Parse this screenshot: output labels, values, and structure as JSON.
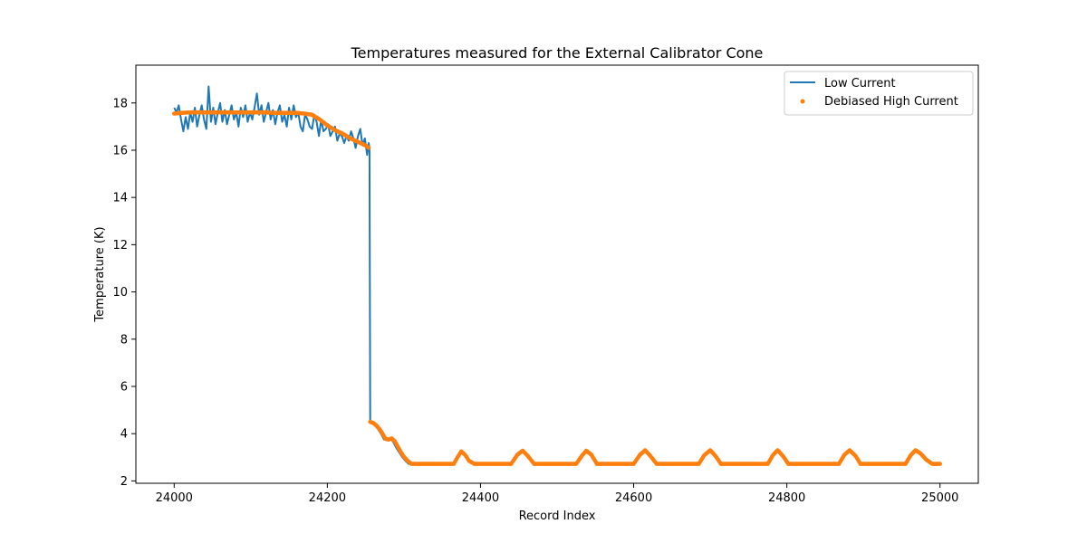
{
  "chart_data": {
    "type": "line",
    "title": "Temperatures measured for the External Calibrator Cone",
    "xlabel": "Record Index",
    "ylabel": "Temperature (K)",
    "xlim": [
      23950,
      25050
    ],
    "ylim": [
      1.9,
      19.6
    ],
    "xticks": [
      24000,
      24200,
      24400,
      24600,
      24800,
      25000
    ],
    "yticks": [
      2,
      4,
      6,
      8,
      10,
      12,
      14,
      16,
      18
    ],
    "grid": false,
    "legend_position": "top-right",
    "series": [
      {
        "name": "Low Current",
        "kind": "line",
        "color": "#1f77b4",
        "x": [
          24000,
          24003,
          24006,
          24009,
          24012,
          24015,
          24018,
          24021,
          24024,
          24027,
          24030,
          24033,
          24036,
          24039,
          24042,
          24045,
          24048,
          24051,
          24054,
          24057,
          24060,
          24063,
          24066,
          24069,
          24072,
          24075,
          24078,
          24081,
          24084,
          24087,
          24090,
          24093,
          24096,
          24099,
          24102,
          24105,
          24108,
          24111,
          24114,
          24117,
          24120,
          24123,
          24126,
          24129,
          24132,
          24135,
          24138,
          24141,
          24144,
          24147,
          24150,
          24153,
          24156,
          24159,
          24162,
          24165,
          24168,
          24171,
          24174,
          24177,
          24180,
          24183,
          24186,
          24189,
          24192,
          24195,
          24198,
          24201,
          24204,
          24207,
          24210,
          24213,
          24216,
          24219,
          24222,
          24225,
          24228,
          24231,
          24234,
          24237,
          24240,
          24243,
          24246,
          24249,
          24252,
          24254,
          24255,
          24256,
          24258,
          24262,
          24266,
          24270,
          24274,
          24278,
          24282,
          24286,
          24290,
          24294,
          24298,
          24302,
          24306,
          24310,
          24316,
          24350,
          24365,
          24370,
          24375,
          24380,
          24385,
          24392,
          24440,
          24448,
          24455,
          24462,
          24470,
          24525,
          24532,
          24538,
          24545,
          24552,
          24600,
          24608,
          24615,
          24622,
          24630,
          24685,
          24692,
          24700,
          24707,
          24714,
          24775,
          24782,
          24788,
          24795,
          24802,
          24868,
          24875,
          24882,
          24890,
          24896,
          24955,
          24962,
          24968,
          24975,
          24982,
          24990,
          25000
        ],
        "y": [
          17.8,
          17.6,
          17.9,
          17.3,
          16.8,
          17.4,
          16.9,
          17.6,
          17.2,
          17.8,
          17.0,
          17.5,
          17.9,
          17.3,
          16.9,
          18.7,
          17.2,
          17.8,
          17.1,
          17.6,
          18.0,
          17.2,
          17.7,
          17.1,
          17.5,
          17.9,
          17.3,
          17.6,
          17.0,
          17.8,
          17.4,
          17.9,
          17.2,
          17.6,
          17.3,
          17.8,
          18.4,
          17.5,
          17.9,
          17.2,
          17.6,
          18.0,
          17.3,
          17.7,
          17.1,
          17.6,
          17.9,
          17.2,
          17.5,
          17.0,
          17.8,
          17.3,
          17.9,
          17.4,
          17.6,
          17.0,
          16.8,
          17.5,
          17.3,
          17.0,
          16.9,
          17.5,
          17.2,
          16.6,
          17.3,
          16.8,
          16.9,
          17.1,
          16.6,
          16.8,
          17.0,
          16.4,
          16.7,
          16.6,
          16.3,
          16.6,
          16.4,
          16.8,
          16.5,
          16.1,
          16.6,
          16.9,
          16.2,
          16.5,
          15.8,
          16.3,
          16.1,
          4.5,
          4.45,
          4.35,
          4.2,
          4.0,
          3.75,
          3.72,
          3.8,
          3.65,
          3.4,
          3.2,
          3.0,
          2.85,
          2.72,
          2.72,
          2.72,
          2.72,
          2.72,
          3.0,
          3.25,
          3.1,
          2.85,
          2.72,
          2.72,
          3.1,
          3.28,
          3.05,
          2.72,
          2.72,
          3.05,
          3.28,
          3.1,
          2.72,
          2.72,
          3.1,
          3.3,
          3.05,
          2.72,
          2.72,
          3.08,
          3.3,
          3.05,
          2.72,
          2.72,
          3.1,
          3.3,
          3.05,
          2.72,
          2.72,
          3.1,
          3.3,
          3.05,
          2.72,
          2.72,
          3.1,
          3.3,
          3.15,
          2.9,
          2.72,
          2.72
        ]
      },
      {
        "name": "Debiased High Current",
        "kind": "scatter",
        "color": "#ff7f0e",
        "x": [
          24000,
          24010,
          24020,
          24030,
          24040,
          24050,
          24060,
          24070,
          24080,
          24090,
          24100,
          24110,
          24120,
          24130,
          24140,
          24150,
          24160,
          24170,
          24180,
          24190,
          24200,
          24210,
          24220,
          24230,
          24240,
          24250,
          24254,
          24256,
          24260,
          24264,
          24268,
          24272,
          24276,
          24280,
          24284,
          24288,
          24292,
          24296,
          24300,
          24305,
          24310,
          24316,
          24350,
          24365,
          24370,
          24375,
          24380,
          24385,
          24392,
          24440,
          24448,
          24455,
          24462,
          24470,
          24525,
          24532,
          24538,
          24545,
          24552,
          24600,
          24608,
          24615,
          24622,
          24630,
          24685,
          24692,
          24700,
          24707,
          24714,
          24775,
          24782,
          24788,
          24795,
          24802,
          24868,
          24875,
          24882,
          24890,
          24896,
          24955,
          24962,
          24968,
          24975,
          24982,
          24990,
          25000
        ],
        "y": [
          17.55,
          17.58,
          17.6,
          17.6,
          17.6,
          17.6,
          17.6,
          17.6,
          17.6,
          17.6,
          17.6,
          17.6,
          17.6,
          17.58,
          17.58,
          17.58,
          17.58,
          17.55,
          17.5,
          17.3,
          17.05,
          16.85,
          16.7,
          16.5,
          16.35,
          16.2,
          16.1,
          4.5,
          4.45,
          4.35,
          4.2,
          4.0,
          3.78,
          3.75,
          3.8,
          3.68,
          3.45,
          3.22,
          3.02,
          2.85,
          2.72,
          2.72,
          2.72,
          2.72,
          3.0,
          3.25,
          3.1,
          2.85,
          2.72,
          2.72,
          3.1,
          3.28,
          3.05,
          2.72,
          2.72,
          3.05,
          3.28,
          3.1,
          2.72,
          2.72,
          3.1,
          3.3,
          3.05,
          2.72,
          2.72,
          3.08,
          3.3,
          3.05,
          2.72,
          2.72,
          3.1,
          3.3,
          3.05,
          2.72,
          2.72,
          3.1,
          3.3,
          3.05,
          2.72,
          2.72,
          3.1,
          3.3,
          3.15,
          2.9,
          2.72,
          2.72
        ]
      }
    ]
  }
}
